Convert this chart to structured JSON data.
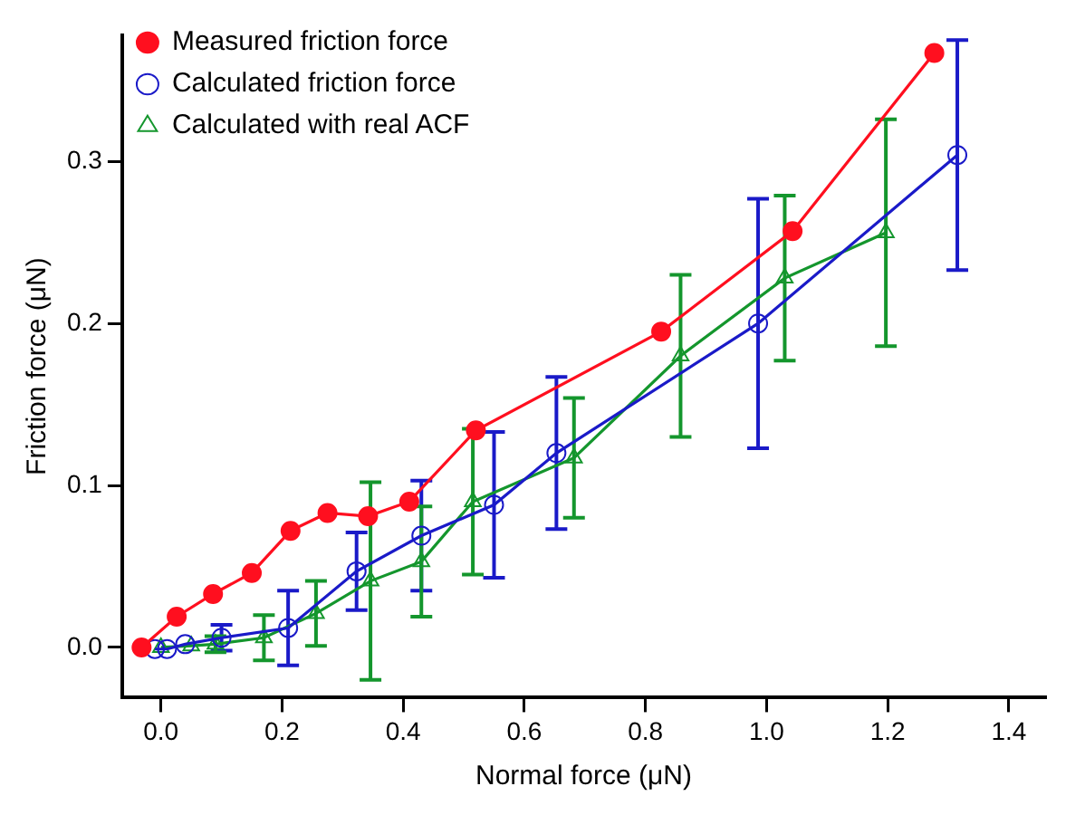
{
  "chart_data": {
    "type": "line",
    "xlabel": "Normal force (μN)",
    "ylabel": "Friction force (μN)",
    "xlim": [
      -0.064,
      1.46
    ],
    "ylim": [
      -0.031,
      0.378
    ],
    "xticks": [
      {
        "value": 0,
        "label": "0.0"
      },
      0.2,
      0.4,
      0.6,
      0.8,
      {
        "value": 1,
        "label": "1.0"
      },
      1.2,
      1.4
    ],
    "yticks": [
      {
        "value": 0,
        "label": "0.0"
      },
      0.1,
      0.2,
      0.3
    ],
    "grid": false,
    "legend": "top left",
    "line_style": "solid",
    "series": [
      {
        "name": "Measured friction force",
        "color": "#ff0f1f",
        "marker": "circle",
        "x": [
          -0.032,
          0.026,
          0.086,
          0.15,
          0.214,
          0.275,
          0.342,
          0.41,
          0.52,
          0.826,
          1.043,
          1.277
        ],
        "values": [
          0,
          0.019,
          0.033,
          0.046,
          0.072,
          0.083,
          0.081,
          0.09,
          0.134,
          0.195,
          0.257,
          0.367
        ]
      },
      {
        "name": "Calculated friction force",
        "color": "#1a1ac8",
        "marker": "circle",
        "x": [
          -0.01,
          0.01,
          0.04,
          0.1,
          0.21,
          0.323,
          0.43,
          0.55,
          0.653,
          0.986,
          1.315
        ],
        "values": [
          -0.001,
          -0.001,
          0.002,
          0.006,
          0.012,
          0.047,
          0.069,
          0.088,
          0.12,
          0.2,
          0.304
        ],
        "errors": [
          null,
          null,
          null,
          0.008,
          0.023,
          0.024,
          0.034,
          0.045,
          0.047,
          0.077,
          0.071
        ]
      },
      {
        "name": "Calculated with real ACF",
        "color": "#14962d",
        "marker": "triangle",
        "x": [
          0.0,
          0.05,
          0.09,
          0.17,
          0.256,
          0.346,
          0.43,
          0.515,
          0.682,
          0.858,
          1.03,
          1.197
        ],
        "values": [
          0,
          0.001,
          0.002,
          0.006,
          0.021,
          0.041,
          0.053,
          0.09,
          0.117,
          0.18,
          0.228,
          0.256
        ],
        "errors": [
          null,
          null,
          0.005,
          0.014,
          0.02,
          0.061,
          0.034,
          0.045,
          0.037,
          0.05,
          0.051,
          0.07
        ]
      }
    ]
  }
}
